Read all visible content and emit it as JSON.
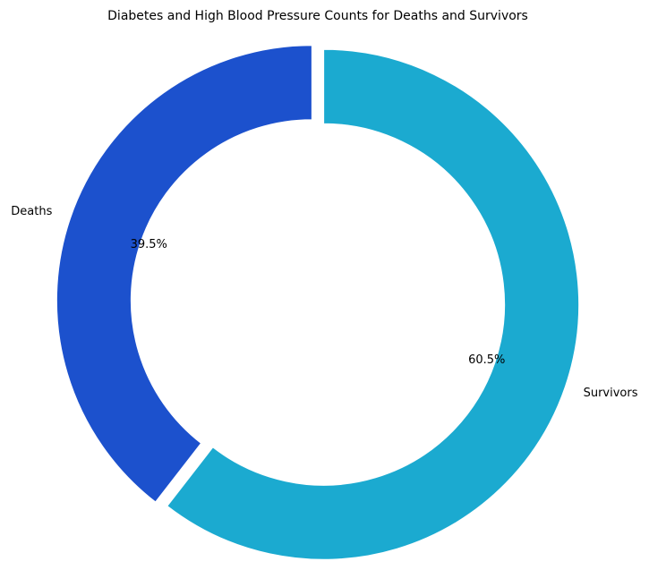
{
  "chart_data": {
    "type": "pie",
    "title": "Diabetes and High Blood Pressure Counts for Deaths and Survivors",
    "categories": [
      "Deaths",
      "Survivors"
    ],
    "values": [
      39.5,
      60.5
    ],
    "percent_labels": [
      "39.5%",
      "60.5%"
    ],
    "colors": [
      "#1c51cd",
      "#1baad0"
    ],
    "donut": true,
    "exploded": true,
    "legend": "none"
  }
}
